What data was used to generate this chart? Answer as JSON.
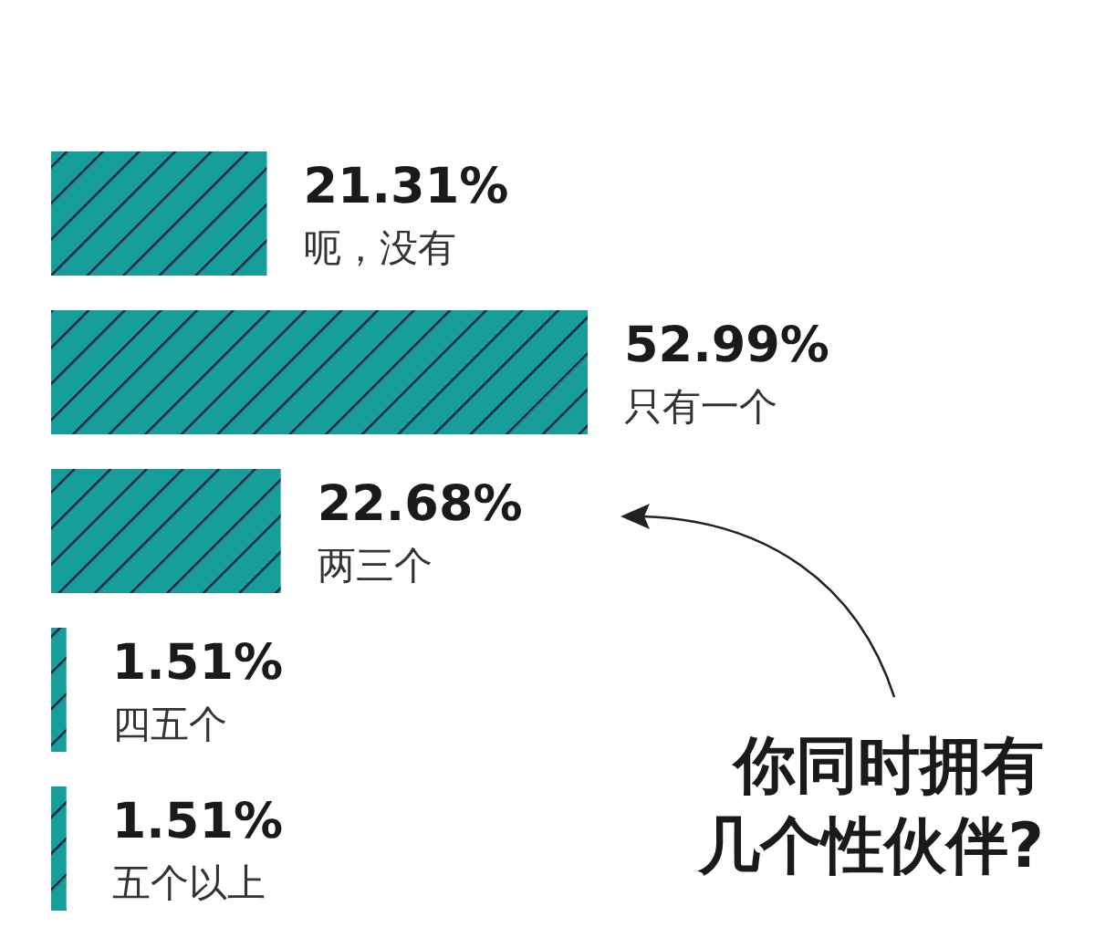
{
  "chart_data": {
    "type": "bar",
    "orientation": "horizontal",
    "title": "你同时拥有几个性伙伴?",
    "categories": [
      "呃，没有",
      "只有一个",
      "两三个",
      "四五个",
      "五个以上"
    ],
    "values": [
      21.31,
      52.99,
      22.68,
      1.51,
      1.51
    ],
    "value_labels": [
      "21.31%",
      "52.99%",
      "22.68%",
      "1.51%",
      "1.51%"
    ],
    "color": "#179e9c"
  }
}
